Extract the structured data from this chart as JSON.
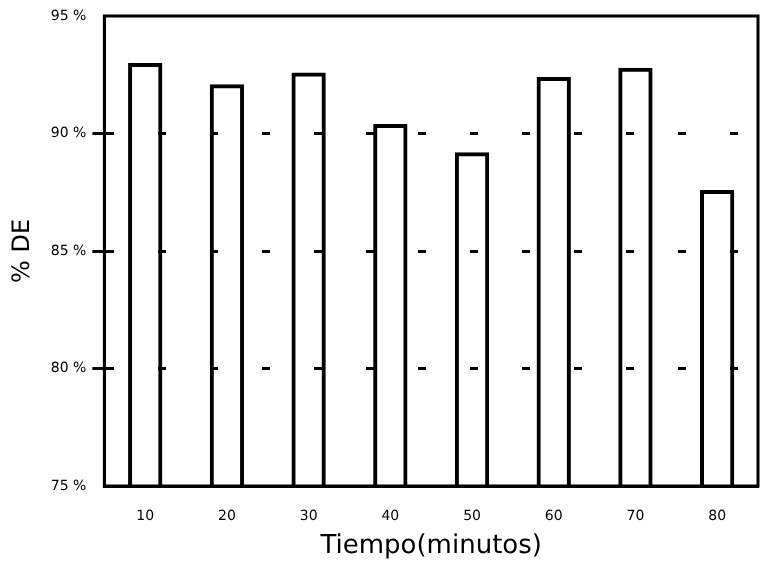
{
  "chart_data": {
    "type": "bar",
    "xlabel": "Tiempo(minutos)",
    "ylabel": "% DE",
    "categories": [
      "10",
      "20",
      "30",
      "40",
      "50",
      "60",
      "70",
      "80"
    ],
    "values": [
      93.0,
      92.1,
      92.6,
      90.4,
      89.2,
      92.4,
      92.8,
      87.6
    ],
    "color": "#000000",
    "ylim": [
      75,
      95
    ],
    "yticks": [
      {
        "value": 75,
        "label": "75 %"
      },
      {
        "value": 80,
        "label": "80 %"
      },
      {
        "value": 85,
        "label": "85 %"
      },
      {
        "value": 90,
        "label": "90 %"
      },
      {
        "value": 95,
        "label": "95 %"
      }
    ],
    "grid": "y",
    "legend": false
  }
}
